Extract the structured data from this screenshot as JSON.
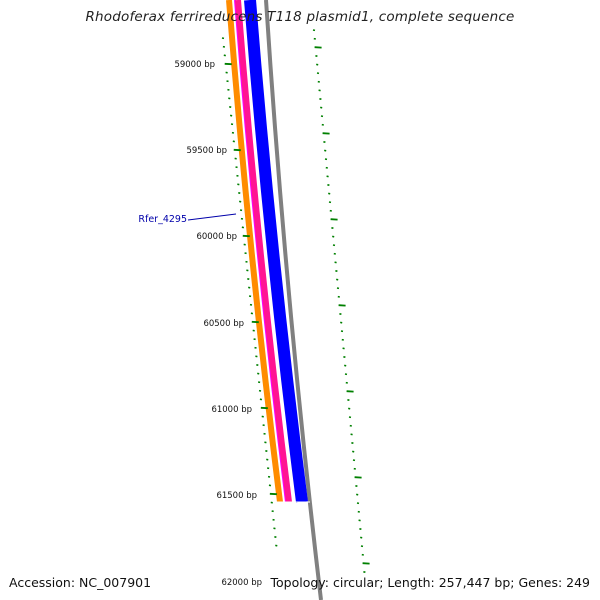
{
  "title": "Rhodoferax ferrireducens T118 plasmid1, complete sequence",
  "footer": {
    "accession": "Accession: NC_007901",
    "summary": "Topology: circular; Length: 257,447 bp; Genes: 249"
  },
  "ruler_labels": [
    "59000 bp",
    "59500 bp",
    "60000 bp",
    "60500 bp",
    "61000 bp",
    "61500 bp",
    "62000 bp"
  ],
  "gene_label": "Rfer_4295",
  "colors": {
    "orange_track": "#ff8c00",
    "pink_track": "#ff1493",
    "blue_track": "#0000ff",
    "backbone": "#808080",
    "ticks": "#008000",
    "label": "#0000aa"
  }
}
